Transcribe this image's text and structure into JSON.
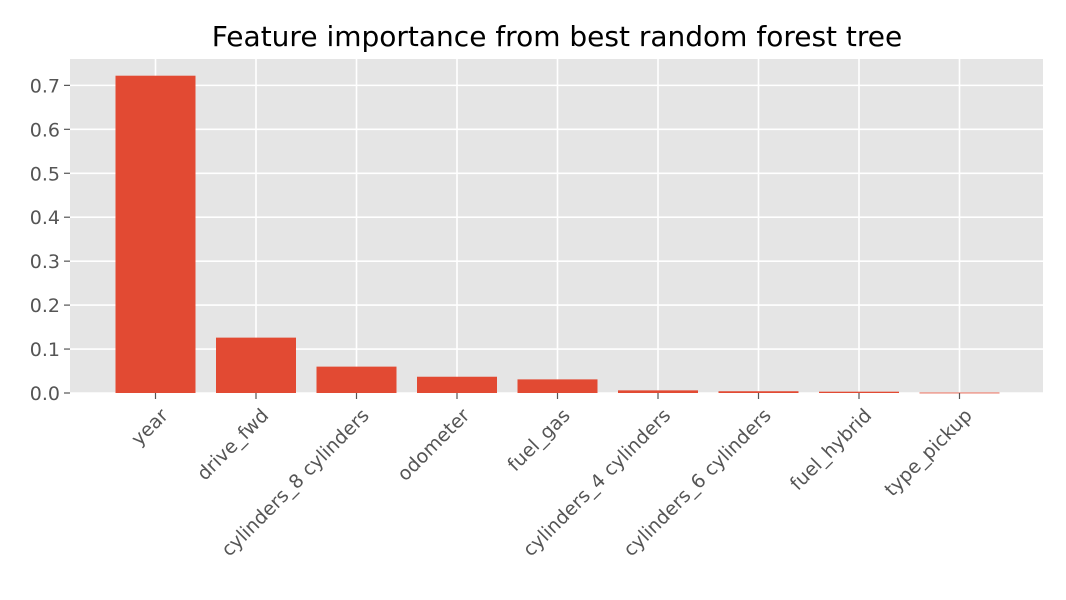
{
  "chart_data": {
    "type": "bar",
    "title": "Feature importance from best random forest tree",
    "xlabel": "",
    "ylabel": "",
    "categories": [
      "year",
      "drive_fwd",
      "cylinders_8 cylinders",
      "odometer",
      "fuel_gas",
      "cylinders_4 cylinders",
      "cylinders_6 cylinders",
      "fuel_hybrid",
      "type_pickup"
    ],
    "values": [
      0.722,
      0.126,
      0.06,
      0.037,
      0.031,
      0.006,
      0.004,
      0.003,
      0.001
    ],
    "yticks": [
      "0.0",
      "0.1",
      "0.2",
      "0.3",
      "0.4",
      "0.5",
      "0.6",
      "0.7"
    ],
    "ylim": [
      0,
      0.76
    ],
    "grid": true,
    "colors": {
      "bar": "#E24A33",
      "plot_background": "#E5E5E5",
      "grid": "#FFFFFF",
      "tick_text": "#555555"
    }
  }
}
